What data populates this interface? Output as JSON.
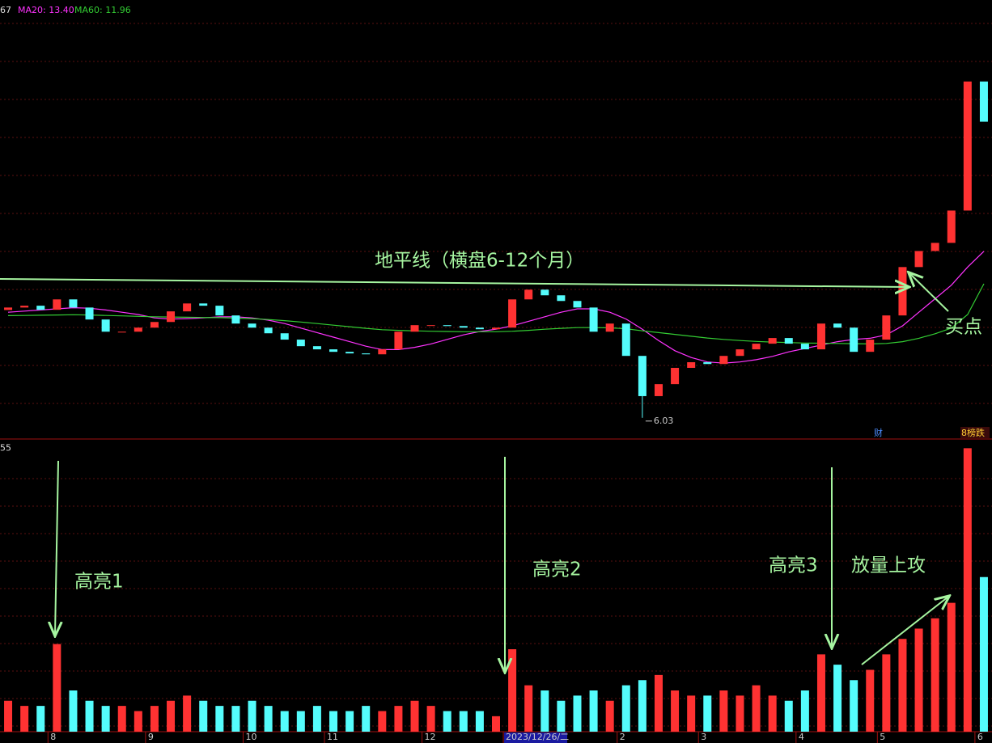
{
  "chart_data": [
    {
      "type": "candlestick",
      "categories": [
        null,
        null,
        null,
        "8",
        null,
        null,
        null,
        null,
        null,
        "9",
        null,
        null,
        null,
        null,
        null,
        "10",
        null,
        null,
        null,
        null,
        "11",
        null,
        null,
        null,
        null,
        null,
        "12",
        null,
        null,
        null,
        null,
        "2023/12/26/二",
        null,
        null,
        null,
        null,
        null,
        null,
        "2",
        null,
        null,
        null,
        null,
        "3",
        null,
        null,
        null,
        null,
        null,
        "4",
        null,
        null,
        null,
        null,
        "5",
        null,
        null,
        null,
        null,
        null,
        "6"
      ],
      "open": [
        10.8,
        10.91,
        10.99,
        10.81,
        11.27,
        10.91,
        10.38,
        9.84,
        9.84,
        10.02,
        10.27,
        10.74,
        11.09,
        10.99,
        10.56,
        10.2,
        10.02,
        9.77,
        9.49,
        9.2,
        9.06,
        8.95,
        8.88,
        8.84,
        9.06,
        9.84,
        10.13,
        10.13,
        10.09,
        10.02,
        9.95,
        10.02,
        11.27,
        11.7,
        11.45,
        11.2,
        10.91,
        9.84,
        10.2,
        8.77,
        6.99,
        7.52,
        8.24,
        8.49,
        8.41,
        8.77,
        9.06,
        9.31,
        9.56,
        9.31,
        9.06,
        10.2,
        10.02,
        8.95,
        9.49,
        10.56,
        12.7,
        13.41,
        13.77,
        15.2,
        20.91
      ],
      "close": [
        10.91,
        10.99,
        10.81,
        11.27,
        10.91,
        10.38,
        9.84,
        9.84,
        10.02,
        10.27,
        10.74,
        11.09,
        10.99,
        10.56,
        10.2,
        10.02,
        9.77,
        9.49,
        9.2,
        9.06,
        8.95,
        8.88,
        8.84,
        9.06,
        9.84,
        10.13,
        10.13,
        10.09,
        10.02,
        9.95,
        10.02,
        11.27,
        11.7,
        11.45,
        11.2,
        10.91,
        9.84,
        10.2,
        8.77,
        6.99,
        7.52,
        8.24,
        8.49,
        8.41,
        8.77,
        9.06,
        9.31,
        9.56,
        9.31,
        9.06,
        10.2,
        10.02,
        8.95,
        9.49,
        10.56,
        12.7,
        13.41,
        13.77,
        15.2,
        20.91,
        19.13
      ],
      "series": [
        {
          "name": "MA20: 13.40",
          "color": "#ff33ff",
          "values": [
            10.7,
            10.75,
            10.8,
            10.85,
            10.9,
            10.88,
            10.8,
            10.7,
            10.6,
            10.45,
            10.4,
            10.42,
            10.45,
            10.5,
            10.5,
            10.45,
            10.35,
            10.2,
            10.0,
            9.8,
            9.6,
            9.4,
            9.2,
            9.05,
            9.05,
            9.15,
            9.3,
            9.5,
            9.7,
            9.85,
            9.95,
            10.1,
            10.3,
            10.5,
            10.7,
            10.85,
            10.85,
            10.7,
            10.4,
            9.95,
            9.45,
            9.0,
            8.7,
            8.5,
            8.45,
            8.5,
            8.6,
            8.75,
            8.95,
            9.1,
            9.25,
            9.4,
            9.5,
            9.55,
            9.7,
            10.1,
            10.7,
            11.3,
            11.9,
            12.7,
            13.4
          ]
        },
        {
          "name": "MA60: 11.96",
          "color": "#33cc33",
          "values": [
            10.55,
            10.56,
            10.57,
            10.58,
            10.59,
            10.58,
            10.56,
            10.54,
            10.52,
            10.5,
            10.49,
            10.48,
            10.47,
            10.46,
            10.44,
            10.42,
            10.38,
            10.33,
            10.27,
            10.2,
            10.13,
            10.06,
            9.99,
            9.93,
            9.9,
            9.88,
            9.86,
            9.85,
            9.84,
            9.84,
            9.84,
            9.86,
            9.9,
            9.95,
            9.99,
            10.02,
            10.02,
            10.01,
            9.97,
            9.88,
            9.8,
            9.72,
            9.64,
            9.56,
            9.5,
            9.45,
            9.41,
            9.38,
            9.36,
            9.34,
            9.33,
            9.32,
            9.31,
            9.3,
            9.32,
            9.4,
            9.55,
            9.75,
            10.0,
            10.6,
            11.96
          ]
        }
      ],
      "ylim": [
        5.2,
        23.8
      ],
      "min_label": {
        "value": 6.03,
        "label": "6.03"
      },
      "ma5_fragment": "67",
      "up_color": "#ff3232",
      "down_color": "#54fcfc"
    },
    {
      "type": "bar",
      "values": [
        6,
        5,
        5,
        17,
        8,
        6,
        5,
        5,
        4,
        5,
        6,
        7,
        6,
        5,
        5,
        6,
        5,
        4,
        4,
        5,
        4,
        4,
        5,
        4,
        5,
        6,
        5,
        4,
        4,
        4,
        3,
        16,
        9,
        8,
        6,
        7,
        8,
        6,
        9,
        10,
        11,
        8,
        7,
        7,
        8,
        7,
        9,
        7,
        6,
        8,
        15,
        13,
        10,
        12,
        15,
        18,
        20,
        22,
        25,
        55,
        30
      ],
      "ylim": [
        0,
        56
      ],
      "yticks": [
        55
      ]
    }
  ],
  "annotations": {
    "horizon": "地平线（横盘6-12个月）",
    "buy": "买点",
    "hl1": "高亮1",
    "hl2": "高亮2",
    "hl3": "高亮3",
    "volume_up": "放量上攻",
    "badge_cai": "财",
    "badge_rank": "8榜跌"
  }
}
